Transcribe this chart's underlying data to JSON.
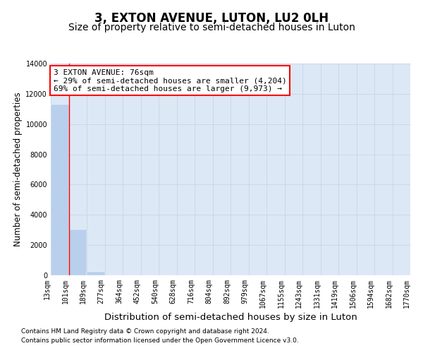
{
  "title": "3, EXTON AVENUE, LUTON, LU2 0LH",
  "subtitle": "Size of property relative to semi-detached houses in Luton",
  "xlabel": "Distribution of semi-detached houses by size in Luton",
  "ylabel": "Number of semi-detached properties",
  "bar_values": [
    11300,
    3050,
    250,
    0,
    0,
    0,
    0,
    0,
    0,
    0,
    0,
    0,
    0,
    0,
    0,
    0,
    0,
    0,
    0,
    0
  ],
  "x_labels": [
    "13sqm",
    "101sqm",
    "189sqm",
    "277sqm",
    "364sqm",
    "452sqm",
    "540sqm",
    "628sqm",
    "716sqm",
    "804sqm",
    "892sqm",
    "979sqm",
    "1067sqm",
    "1155sqm",
    "1243sqm",
    "1331sqm",
    "1419sqm",
    "1506sqm",
    "1594sqm",
    "1682sqm",
    "1770sqm"
  ],
  "ylim": [
    0,
    14000
  ],
  "yticks": [
    0,
    2000,
    4000,
    6000,
    8000,
    10000,
    12000,
    14000
  ],
  "bar_color": "#b8d0eb",
  "grid_color": "#c8d8ec",
  "background_color": "#dce8f5",
  "annotation_text": "3 EXTON AVENUE: 76sqm\n← 29% of semi-detached houses are smaller (4,204)\n69% of semi-detached houses are larger (9,973) →",
  "footer_line1": "Contains HM Land Registry data © Crown copyright and database right 2024.",
  "footer_line2": "Contains public sector information licensed under the Open Government Licence v3.0.",
  "title_fontsize": 12,
  "subtitle_fontsize": 10,
  "ylabel_fontsize": 8.5,
  "xlabel_fontsize": 9.5,
  "tick_fontsize": 7,
  "annotation_fontsize": 8,
  "footer_fontsize": 6.5
}
